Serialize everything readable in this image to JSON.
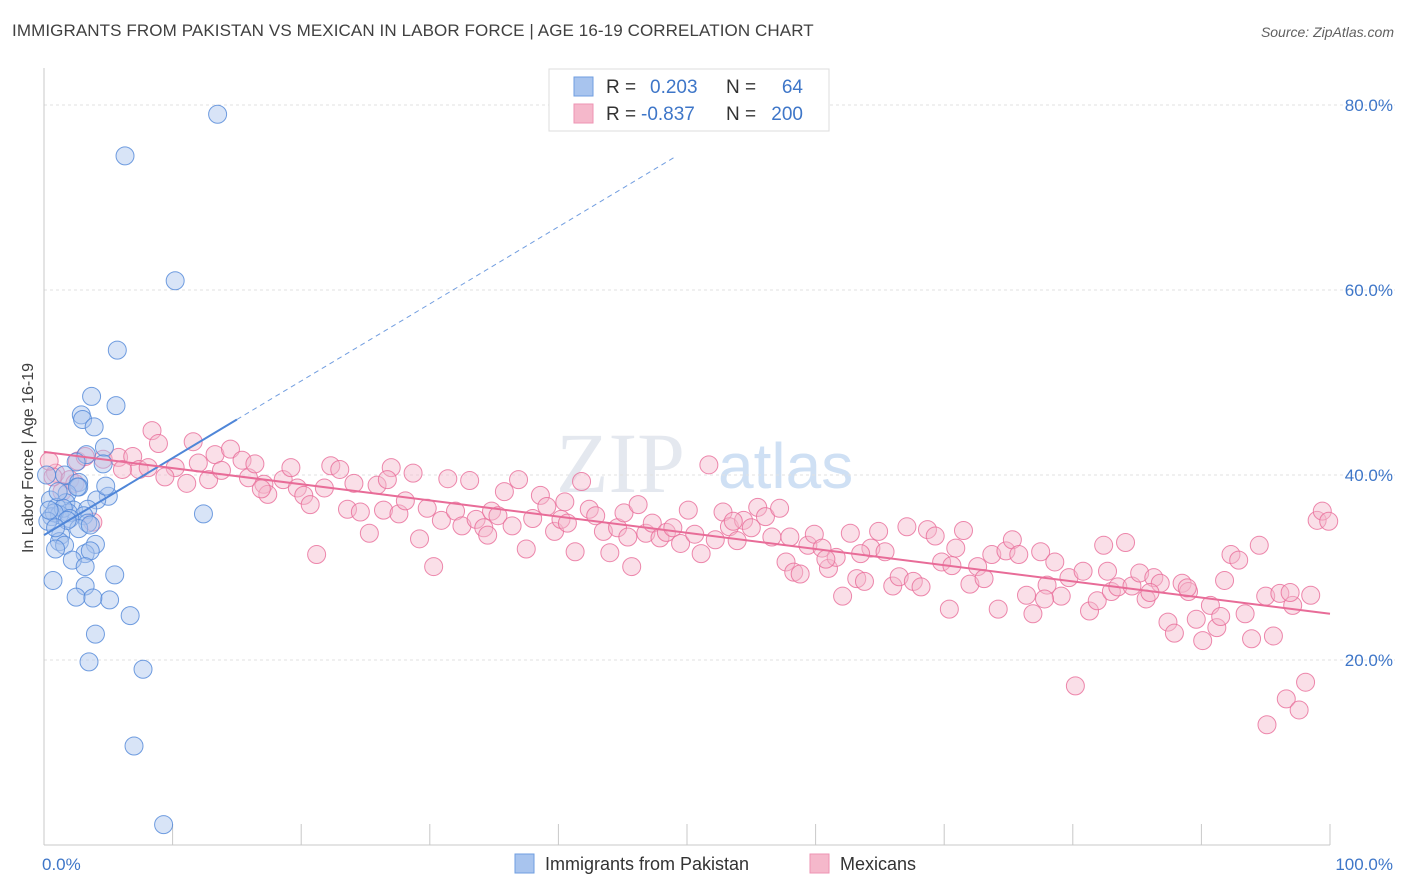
{
  "title": "IMMIGRANTS FROM PAKISTAN VS MEXICAN IN LABOR FORCE | AGE 16-19 CORRELATION CHART",
  "source": "Source: ZipAtlas.com",
  "watermark": {
    "zip": "ZIP",
    "atlas": "atlas"
  },
  "legend_box": {
    "rows": [
      {
        "r_label": "R =",
        "r_value": "0.203",
        "n_label": "N =",
        "n_value": "64",
        "color": "#a8c4ee"
      },
      {
        "r_label": "R =",
        "r_value": "-0.837",
        "n_label": "N =",
        "n_value": "200",
        "color": "#f5b8cb"
      }
    ]
  },
  "bottom_legend": [
    {
      "label": "Immigrants from Pakistan",
      "color": "#a8c4ee"
    },
    {
      "label": "Mexicans",
      "color": "#f5b8cb"
    }
  ],
  "chart_data": {
    "type": "scatter",
    "title": "IMMIGRANTS FROM PAKISTAN VS MEXICAN IN LABOR FORCE | AGE 16-19 CORRELATION CHART",
    "xlabel": "",
    "ylabel": "In Labor Force | Age 16-19",
    "xlim": [
      0,
      100
    ],
    "ylim": [
      0,
      84
    ],
    "x_tick_labels": [
      "0.0%",
      "100.0%"
    ],
    "y_ticks": [
      20,
      40,
      60,
      80
    ],
    "y_tick_labels": [
      "20.0%",
      "40.0%",
      "60.0%",
      "80.0%"
    ],
    "grid": true,
    "legend_position": "top-center",
    "colors": {
      "pakistan": "#4f86d8",
      "pakistan_fill": "#a8c4ee",
      "mexican": "#e86c98",
      "mexican_fill": "#f5b8cb"
    },
    "series": [
      {
        "name": "Immigrants from Pakistan",
        "trend": {
          "x": [
            0,
            15
          ],
          "y": [
            33.5,
            46.0
          ],
          "dashed_to": [
            100,
            110
          ]
        },
        "points": [
          [
            13.5,
            79.0
          ],
          [
            6.3,
            74.5
          ],
          [
            10.2,
            61.0
          ],
          [
            5.7,
            53.5
          ],
          [
            3.7,
            48.5
          ],
          [
            5.6,
            47.5
          ],
          [
            2.9,
            46.5
          ],
          [
            3.0,
            46.0
          ],
          [
            3.9,
            45.2
          ],
          [
            4.7,
            43.0
          ],
          [
            3.3,
            42.2
          ],
          [
            4.6,
            41.2
          ],
          [
            2.5,
            41.4
          ],
          [
            1.6,
            40.0
          ],
          [
            2.7,
            39.2
          ],
          [
            2.7,
            38.7
          ],
          [
            1.8,
            38.0
          ],
          [
            5.0,
            37.7
          ],
          [
            4.1,
            37.3
          ],
          [
            0.5,
            37.3
          ],
          [
            1.7,
            37.0
          ],
          [
            1.0,
            36.5
          ],
          [
            2.3,
            36.2
          ],
          [
            3.4,
            36.3
          ],
          [
            1.9,
            35.9
          ],
          [
            0.6,
            35.5
          ],
          [
            1.2,
            35.7
          ],
          [
            1.5,
            36.4
          ],
          [
            0.8,
            35.9
          ],
          [
            3.1,
            35.6
          ],
          [
            2.0,
            35.3
          ],
          [
            0.3,
            35.0
          ],
          [
            3.4,
            34.8
          ],
          [
            12.4,
            35.8
          ],
          [
            2.7,
            34.2
          ],
          [
            3.6,
            34.6
          ],
          [
            1.3,
            33.5
          ],
          [
            1.2,
            32.8
          ],
          [
            1.6,
            32.4
          ],
          [
            4.0,
            32.5
          ],
          [
            0.9,
            32.0
          ],
          [
            3.2,
            31.5
          ],
          [
            3.6,
            31.8
          ],
          [
            2.2,
            30.8
          ],
          [
            3.2,
            30.1
          ],
          [
            5.5,
            29.2
          ],
          [
            0.7,
            28.6
          ],
          [
            3.2,
            28.0
          ],
          [
            2.5,
            26.8
          ],
          [
            5.1,
            26.5
          ],
          [
            3.8,
            26.7
          ],
          [
            6.7,
            24.8
          ],
          [
            4.0,
            22.8
          ],
          [
            3.5,
            19.8
          ],
          [
            7.7,
            19.0
          ],
          [
            7.0,
            10.7
          ],
          [
            9.3,
            2.2
          ],
          [
            0.2,
            40.0
          ],
          [
            4.8,
            38.8
          ],
          [
            1.1,
            38.2
          ],
          [
            0.4,
            36.2
          ],
          [
            2.6,
            38.7
          ],
          [
            1.8,
            35.1
          ],
          [
            0.9,
            34.3
          ]
        ]
      },
      {
        "name": "Mexicans",
        "trend": {
          "x": [
            0,
            100
          ],
          "y": [
            42.5,
            25.0
          ]
        },
        "points": [
          [
            0.9,
            40.2
          ],
          [
            2.0,
            39.5
          ],
          [
            2.6,
            41.5
          ],
          [
            3.2,
            42.0
          ],
          [
            1.4,
            38.2
          ],
          [
            3.8,
            34.9
          ],
          [
            0.7,
            39.8
          ],
          [
            2.4,
            39.1
          ],
          [
            4.6,
            41.7
          ],
          [
            5.8,
            41.9
          ],
          [
            6.9,
            42.0
          ],
          [
            7.4,
            40.6
          ],
          [
            8.1,
            40.8
          ],
          [
            8.4,
            44.8
          ],
          [
            8.9,
            43.4
          ],
          [
            10.2,
            40.8
          ],
          [
            11.1,
            39.1
          ],
          [
            11.6,
            43.6
          ],
          [
            12.8,
            39.5
          ],
          [
            13.3,
            42.2
          ],
          [
            13.8,
            40.5
          ],
          [
            14.5,
            42.8
          ],
          [
            15.4,
            41.6
          ],
          [
            15.9,
            39.7
          ],
          [
            16.4,
            41.2
          ],
          [
            17.1,
            39.0
          ],
          [
            17.4,
            37.9
          ],
          [
            18.6,
            39.5
          ],
          [
            19.2,
            40.8
          ],
          [
            19.7,
            38.6
          ],
          [
            20.2,
            37.8
          ],
          [
            20.7,
            36.8
          ],
          [
            21.2,
            31.4
          ],
          [
            21.8,
            38.6
          ],
          [
            22.3,
            41.0
          ],
          [
            23.0,
            40.6
          ],
          [
            23.6,
            36.3
          ],
          [
            24.1,
            39.1
          ],
          [
            24.6,
            36.0
          ],
          [
            25.3,
            33.7
          ],
          [
            25.9,
            38.9
          ],
          [
            26.4,
            36.2
          ],
          [
            27.0,
            40.8
          ],
          [
            27.6,
            35.8
          ],
          [
            28.1,
            37.2
          ],
          [
            28.7,
            40.2
          ],
          [
            29.2,
            33.1
          ],
          [
            29.8,
            36.4
          ],
          [
            30.3,
            30.1
          ],
          [
            30.9,
            35.1
          ],
          [
            31.4,
            39.6
          ],
          [
            32.0,
            36.1
          ],
          [
            32.5,
            34.5
          ],
          [
            33.1,
            39.4
          ],
          [
            33.6,
            35.2
          ],
          [
            34.2,
            34.3
          ],
          [
            34.8,
            36.1
          ],
          [
            35.3,
            35.6
          ],
          [
            35.8,
            38.2
          ],
          [
            36.4,
            34.5
          ],
          [
            36.9,
            39.5
          ],
          [
            37.5,
            32.0
          ],
          [
            38.0,
            35.3
          ],
          [
            38.6,
            37.8
          ],
          [
            39.1,
            36.6
          ],
          [
            39.7,
            33.9
          ],
          [
            40.2,
            35.2
          ],
          [
            40.7,
            34.8
          ],
          [
            41.3,
            31.7
          ],
          [
            41.8,
            39.3
          ],
          [
            42.4,
            36.3
          ],
          [
            42.9,
            35.6
          ],
          [
            43.5,
            33.9
          ],
          [
            44.0,
            31.6
          ],
          [
            44.6,
            34.3
          ],
          [
            45.1,
            35.9
          ],
          [
            45.7,
            30.1
          ],
          [
            46.2,
            36.8
          ],
          [
            46.8,
            33.7
          ],
          [
            47.3,
            34.8
          ],
          [
            47.9,
            33.2
          ],
          [
            48.4,
            33.8
          ],
          [
            48.9,
            34.3
          ],
          [
            49.5,
            32.6
          ],
          [
            50.1,
            36.2
          ],
          [
            50.6,
            33.6
          ],
          [
            51.1,
            31.5
          ],
          [
            51.7,
            41.1
          ],
          [
            52.2,
            33.0
          ],
          [
            52.8,
            36.0
          ],
          [
            53.3,
            34.4
          ],
          [
            53.9,
            32.9
          ],
          [
            54.4,
            35.1
          ],
          [
            55.0,
            34.3
          ],
          [
            55.5,
            36.5
          ],
          [
            56.1,
            35.5
          ],
          [
            56.6,
            33.3
          ],
          [
            57.2,
            36.4
          ],
          [
            57.7,
            30.6
          ],
          [
            58.3,
            29.5
          ],
          [
            58.8,
            29.3
          ],
          [
            59.4,
            32.4
          ],
          [
            59.9,
            33.6
          ],
          [
            60.5,
            32.1
          ],
          [
            61.0,
            29.9
          ],
          [
            61.6,
            31.1
          ],
          [
            62.1,
            26.9
          ],
          [
            62.7,
            33.7
          ],
          [
            63.2,
            28.8
          ],
          [
            63.8,
            28.5
          ],
          [
            64.3,
            32.1
          ],
          [
            64.9,
            33.9
          ],
          [
            65.4,
            31.7
          ],
          [
            66.0,
            28.0
          ],
          [
            66.5,
            29.0
          ],
          [
            67.1,
            34.4
          ],
          [
            67.6,
            28.5
          ],
          [
            68.2,
            27.9
          ],
          [
            68.7,
            34.1
          ],
          [
            69.3,
            33.4
          ],
          [
            69.8,
            30.6
          ],
          [
            70.4,
            25.5
          ],
          [
            70.9,
            32.1
          ],
          [
            71.5,
            34.0
          ],
          [
            72.0,
            28.2
          ],
          [
            72.6,
            30.1
          ],
          [
            73.1,
            28.8
          ],
          [
            73.7,
            31.4
          ],
          [
            74.2,
            25.5
          ],
          [
            74.8,
            31.8
          ],
          [
            75.3,
            33.0
          ],
          [
            75.8,
            31.4
          ],
          [
            76.4,
            27.0
          ],
          [
            76.9,
            25.0
          ],
          [
            77.5,
            31.7
          ],
          [
            78.0,
            28.1
          ],
          [
            78.6,
            30.6
          ],
          [
            79.1,
            26.9
          ],
          [
            79.7,
            28.9
          ],
          [
            80.2,
            17.2
          ],
          [
            80.8,
            29.6
          ],
          [
            81.3,
            25.3
          ],
          [
            81.9,
            26.4
          ],
          [
            82.4,
            32.4
          ],
          [
            83.0,
            27.4
          ],
          [
            83.5,
            27.9
          ],
          [
            84.1,
            32.7
          ],
          [
            84.6,
            28.0
          ],
          [
            85.2,
            29.4
          ],
          [
            85.7,
            26.6
          ],
          [
            86.3,
            28.9
          ],
          [
            86.8,
            28.3
          ],
          [
            87.4,
            24.1
          ],
          [
            87.9,
            22.9
          ],
          [
            88.5,
            28.3
          ],
          [
            89.0,
            27.4
          ],
          [
            89.6,
            24.4
          ],
          [
            90.1,
            22.1
          ],
          [
            90.7,
            25.9
          ],
          [
            91.2,
            23.5
          ],
          [
            91.8,
            28.6
          ],
          [
            92.3,
            31.4
          ],
          [
            92.9,
            30.8
          ],
          [
            93.4,
            25.0
          ],
          [
            93.9,
            22.3
          ],
          [
            94.5,
            32.4
          ],
          [
            95.0,
            26.9
          ],
          [
            95.1,
            13.0
          ],
          [
            95.6,
            22.6
          ],
          [
            96.1,
            27.2
          ],
          [
            96.6,
            15.8
          ],
          [
            97.1,
            25.9
          ],
          [
            97.6,
            14.6
          ],
          [
            98.1,
            17.6
          ],
          [
            98.5,
            27.0
          ],
          [
            99.0,
            35.1
          ],
          [
            99.4,
            36.1
          ],
          [
            99.9,
            35.0
          ],
          [
            6.1,
            40.6
          ],
          [
            9.4,
            39.8
          ],
          [
            12.0,
            41.3
          ],
          [
            16.9,
            38.5
          ],
          [
            26.7,
            39.5
          ],
          [
            34.5,
            33.5
          ],
          [
            40.5,
            37.1
          ],
          [
            45.4,
            33.3
          ],
          [
            53.6,
            35.0
          ],
          [
            58.0,
            33.3
          ],
          [
            60.8,
            30.9
          ],
          [
            63.5,
            31.5
          ],
          [
            70.6,
            30.2
          ],
          [
            77.8,
            26.6
          ],
          [
            82.7,
            29.6
          ],
          [
            86.0,
            27.3
          ],
          [
            88.9,
            27.8
          ],
          [
            91.5,
            24.7
          ],
          [
            0.4,
            41.5
          ],
          [
            96.9,
            27.3
          ]
        ]
      }
    ]
  }
}
